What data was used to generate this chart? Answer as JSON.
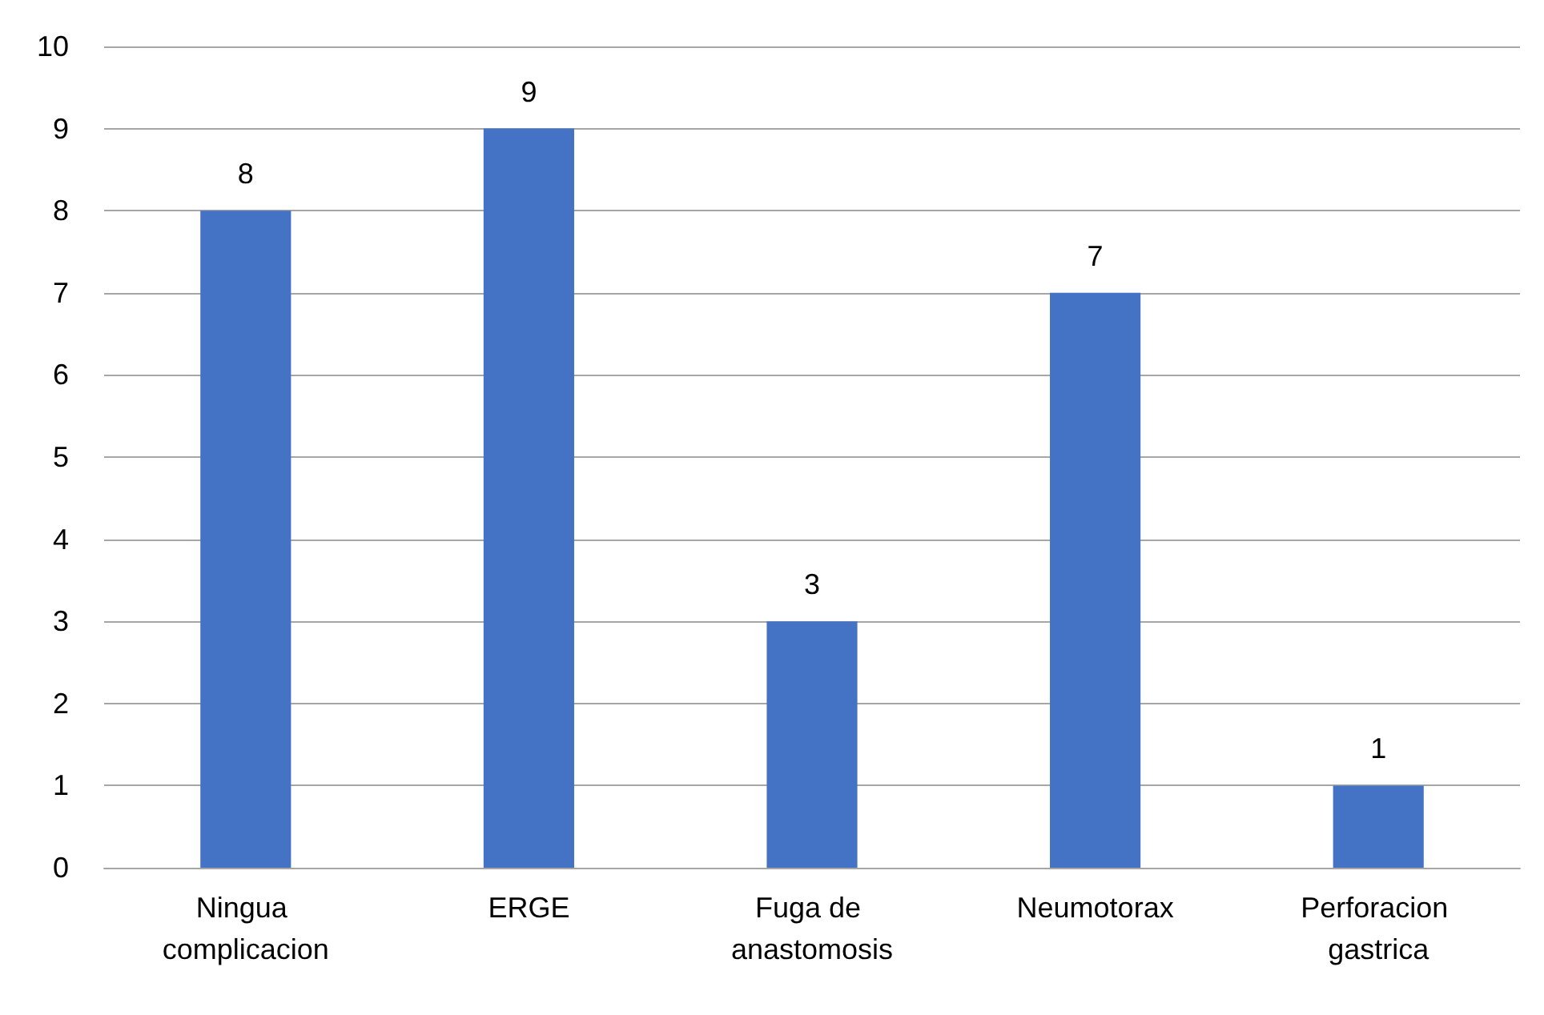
{
  "chart_data": {
    "type": "bar",
    "categories": [
      "Ningua complicacion",
      "ERGE",
      "Fuga de anastomosis",
      "Neumotorax",
      "Perforacion gastrica"
    ],
    "values": [
      8,
      9,
      3,
      7,
      1
    ],
    "color": "#4472c4",
    "ylim": [
      0,
      10
    ],
    "yticks": [
      0,
      1,
      2,
      3,
      4,
      5,
      6,
      7,
      8,
      9,
      10
    ],
    "grid": "y",
    "data_labels": true
  }
}
